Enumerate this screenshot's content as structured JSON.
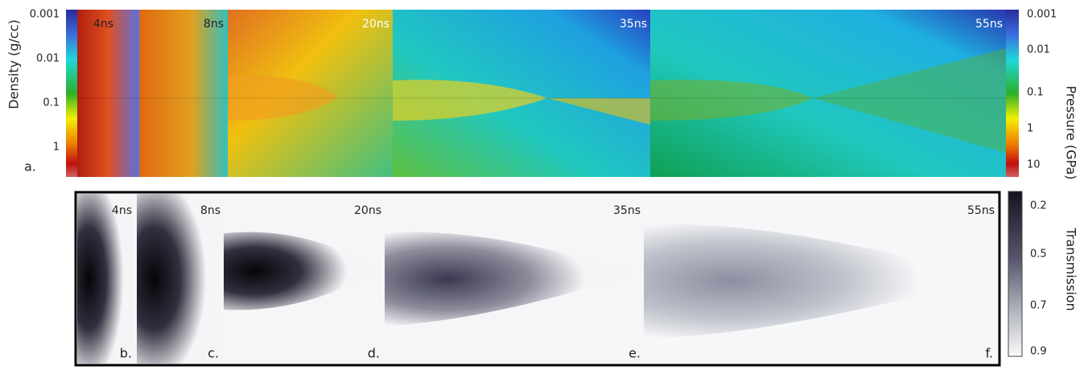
{
  "top_panel": {
    "label": "a.",
    "times": [
      "4ns",
      "8ns",
      "20ns",
      "35ns",
      "55ns"
    ],
    "left_axis": {
      "title": "Density (g/cc)",
      "ticks": [
        "0.001",
        "0.01",
        "0.1",
        "1"
      ]
    },
    "right_axis": {
      "title": "Pressure (GPa)",
      "ticks": [
        "0.001",
        "0.01",
        "0.1",
        "1",
        "10"
      ]
    }
  },
  "bottom_panel": {
    "times": [
      "4ns",
      "8ns",
      "20ns",
      "35ns",
      "55ns"
    ],
    "labels": [
      "b.",
      "c.",
      "d.",
      "e.",
      "f."
    ],
    "axis": {
      "title": "Transmission",
      "ticks": [
        "0.2",
        "0.5",
        "0.7",
        "0.9"
      ]
    }
  }
}
